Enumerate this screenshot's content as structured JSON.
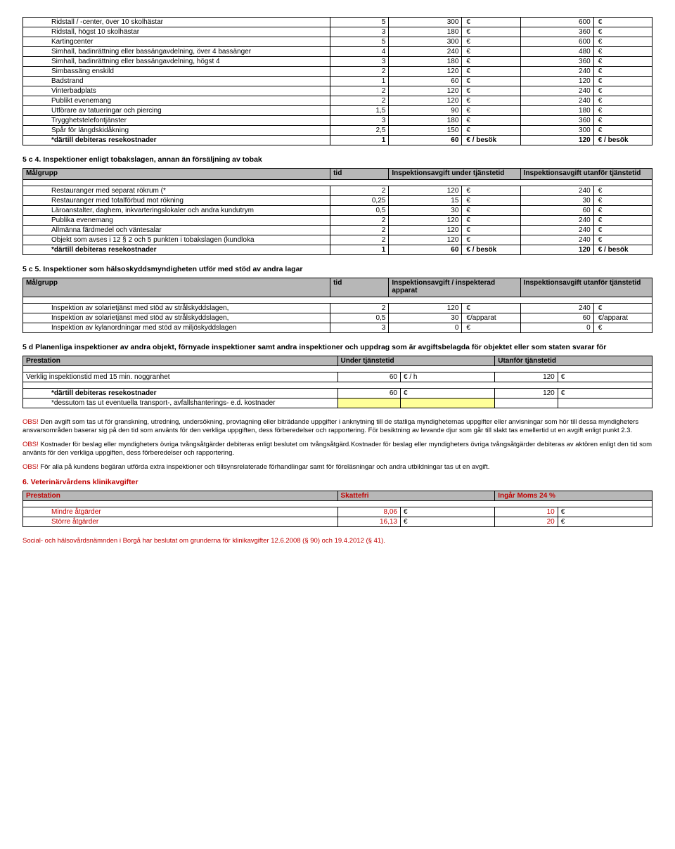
{
  "table1": {
    "rows": [
      {
        "desc": "Ridstall / -center, över 10 skolhästar",
        "c1": "5",
        "c2": "300",
        "cur1": "€",
        "c3": "600",
        "cur2": "€"
      },
      {
        "desc": "Ridstall, högst 10 skolhästar",
        "c1": "3",
        "c2": "180",
        "cur1": "€",
        "c3": "360",
        "cur2": "€"
      },
      {
        "desc": "Kartingcenter",
        "c1": "5",
        "c2": "300",
        "cur1": "€",
        "c3": "600",
        "cur2": "€"
      },
      {
        "desc": "Simhall, badinrättning eller bassängavdelning, över 4 bassänger",
        "c1": "4",
        "c2": "240",
        "cur1": "€",
        "c3": "480",
        "cur2": "€"
      },
      {
        "desc": "Simhall, badinrättning eller bassängavdelning, högst 4",
        "c1": "3",
        "c2": "180",
        "cur1": "€",
        "c3": "360",
        "cur2": "€"
      },
      {
        "desc": "Simbassäng enskild",
        "c1": "2",
        "c2": "120",
        "cur1": "€",
        "c3": "240",
        "cur2": "€"
      },
      {
        "desc": "Badstrand",
        "c1": "1",
        "c2": "60",
        "cur1": "€",
        "c3": "120",
        "cur2": "€"
      },
      {
        "desc": "Vinterbadplats",
        "c1": "2",
        "c2": "120",
        "cur1": "€",
        "c3": "240",
        "cur2": "€"
      },
      {
        "desc": "Publikt evenemang",
        "c1": "2",
        "c2": "120",
        "cur1": "€",
        "c3": "240",
        "cur2": "€"
      },
      {
        "desc": "Utförare av tatueringar och piercing",
        "c1": "1,5",
        "c2": "90",
        "cur1": "€",
        "c3": "180",
        "cur2": "€"
      },
      {
        "desc": "Trygghetstelefontjänster",
        "c1": "3",
        "c2": "180",
        "cur1": "€",
        "c3": "360",
        "cur2": "€"
      },
      {
        "desc": "Spår för längdskidåkning",
        "c1": "2,5",
        "c2": "150",
        "cur1": "€",
        "c3": "300",
        "cur2": "€"
      },
      {
        "desc": "*därtill debiteras resekostnader",
        "c1": "1",
        "c2": "60",
        "cur1": "€ / besök",
        "c3": "120",
        "cur2": "€ / besök",
        "bold": true
      }
    ]
  },
  "s5c4": {
    "title": "5 c 4. Inspektioner enligt tobakslagen, annan än försäljning av tobak",
    "head": {
      "c0": "Målgrupp",
      "c1": "tid",
      "c2": "Inspektionsavgift under tjänstetid",
      "c3": "Inspektionsavgift utanför tjänstetid"
    },
    "rows": [
      {
        "desc": "Restauranger med separat rökrum (*",
        "c1": "2",
        "c2": "120",
        "cur1": "€",
        "c3": "240",
        "cur2": "€"
      },
      {
        "desc": "Restauranger med totalförbud mot rökning",
        "c1": "0,25",
        "c2": "15",
        "cur1": "€",
        "c3": "30",
        "cur2": "€"
      },
      {
        "desc": "Läroanstalter, daghem, inkvarteringslokaler och andra kundutrym",
        "c1": "0,5",
        "c2": "30",
        "cur1": "€",
        "c3": "60",
        "cur2": "€"
      },
      {
        "desc": "Publika evenemang",
        "c1": "2",
        "c2": "120",
        "cur1": "€",
        "c3": "240",
        "cur2": "€"
      },
      {
        "desc": "Allmänna färdmedel och väntesalar",
        "c1": "2",
        "c2": "120",
        "cur1": "€",
        "c3": "240",
        "cur2": "€"
      },
      {
        "desc": "Objekt som avses i 12 § 2 och 5 punkten i tobakslagen (kundloka",
        "c1": "2",
        "c2": "120",
        "cur1": "€",
        "c3": "240",
        "cur2": "€"
      },
      {
        "desc": "*därtill debiteras resekostnader",
        "c1": "1",
        "c2": "60",
        "cur1": "€ / besök",
        "c3": "120",
        "cur2": "€ / besök",
        "bold": true
      }
    ]
  },
  "s5c5": {
    "title": "5 c 5. Inspektioner som hälsoskyddsmyndigheten utför med stöd av andra lagar",
    "head": {
      "c0": "Målgrupp",
      "c1": "tid",
      "c2": "Inspektionsavgift / inspekterad apparat",
      "c3": "Inspektionsavgift utanför tjänstetid"
    },
    "rows": [
      {
        "desc": "Inspektion av solarietjänst med stöd av strålskyddslagen,",
        "c1": "2",
        "c2": "120",
        "cur1": "€",
        "c3": "240",
        "cur2": "€"
      },
      {
        "desc": "Inspektion av solarietjänst med stöd av strålskyddslagen,",
        "c1": "0,5",
        "c2": "30",
        "cur1": "€/apparat",
        "c3": "60",
        "cur2": "€/apparat"
      },
      {
        "desc": "Inspektion av kylanordningar med stöd av miljöskyddslagen",
        "c1": "3",
        "c2": "0",
        "cur1": "€",
        "c3": "0",
        "cur2": "€"
      }
    ]
  },
  "s5d": {
    "title": "5 d Planenliga inspektioner av andra objekt, förnyade inspektioner samt andra inspektioner och uppdrag som är avgiftsbelagda för objektet eller som staten svarar för",
    "head": {
      "c0": "Prestation",
      "c2": "Under tjänstetid",
      "c3": "Utanför tjänstetid"
    },
    "row1": {
      "desc": "Verklig inspektionstid med 15 min. noggranhet",
      "c2": "60",
      "cur1": "€ / h",
      "c3": "120",
      "cur2": "€"
    },
    "row2": {
      "desc": "*därtill debiteras resekostnader",
      "c2": "60",
      "cur1": "€",
      "c3": "120",
      "cur2": "€"
    },
    "row3": {
      "desc": "*dessutom tas ut eventuella transport-, avfallshanterings- e.d. kostnader"
    }
  },
  "obs1": {
    "label": "OBS!",
    "text": " Den avgift som tas ut för granskning, utredning, undersökning, provtagning eller biträdande uppgifter i anknytning till de statliga myndigheternas uppgifter eller anvisningar som hör till dessa myndigheters ansvarsområden baserar sig på den tid som använts för den verkliga uppgiften, dess förberedelser och rapportering. För besiktning av levande djur som går till slakt tas emellertid ut en avgift enligt punkt 2.3."
  },
  "obs2": {
    "label": "OBS!",
    "text": " Kostnader för beslag eller myndigheters övriga tvångsåtgärder debiteras enligt beslutet om tvångsåtgärd.Kostnader för beslag eller myndigheters övriga tvångsåtgärder debiteras av aktören enligt den tid som använts för den verkliga uppgiften, dess förberedelser och rapportering."
  },
  "obs3": {
    "label": "OBS!",
    "text": " För alla på kundens begäran utförda extra inspektioner och tillsynsrelaterade förhandlingar samt för föreläsningar och andra utbildningar tas ut en avgift."
  },
  "s6": {
    "title": "6. Veterinärvårdens klinikavgifter",
    "head": {
      "c0": "Prestation",
      "c2": "Skattefri",
      "c3": "Ingår Moms 24 %"
    },
    "rows": [
      {
        "desc": "Mindre åtgärder",
        "c2": "8,06",
        "cur1": "€",
        "c3": "10",
        "cur2": "€"
      },
      {
        "desc": "Större åtgärder",
        "c2": "16,13",
        "cur1": "€",
        "c3": "20",
        "cur2": "€"
      }
    ]
  },
  "footer": "Social- och hälsovårdsnämnden i Borgå har beslutat om grunderna för klinikavgifter 12.6.2008 (§ 90) och 19.4.2012 (§ 41)."
}
